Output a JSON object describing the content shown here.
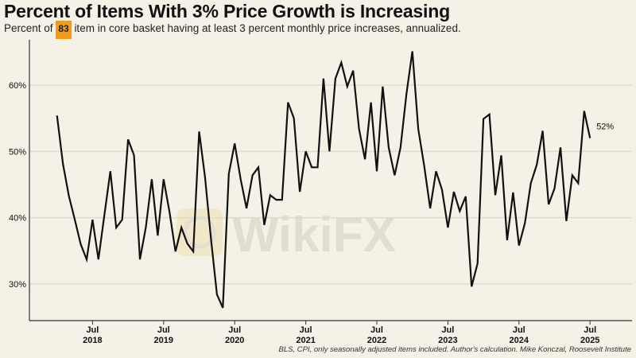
{
  "title": "Percent of Items With 3% Price Growth is Increasing",
  "subtitle": {
    "prefix": "Percent of",
    "highlight": "83",
    "suffix": "item in core basket having at least 3 percent monthly price increases, annualized."
  },
  "source": "BLS, CPI, only seasonally adjusted items included. Author's calculation. Mike Konczal, Roosevelt Institute",
  "watermark": "WikiFX",
  "colors": {
    "background": "#f4f1e6",
    "line": "#111111",
    "highlight": "#f39a1e",
    "grid": "#dcd8cc"
  },
  "chart_data": {
    "type": "line",
    "title": "Percent of Items With 3% Price Growth is Increasing",
    "x_start": "2018-01",
    "x_end": "2025-07",
    "frequency": "monthly",
    "ylim": [
      25,
      67
    ],
    "grid": true,
    "y_ticks": [
      {
        "value": 30,
        "label": "30%"
      },
      {
        "value": 40,
        "label": "40%"
      },
      {
        "value": 50,
        "label": "50%"
      },
      {
        "value": 60,
        "label": "60%"
      }
    ],
    "x_ticks": [
      {
        "month": "Jul",
        "year": "2018"
      },
      {
        "month": "Jul",
        "year": "2019"
      },
      {
        "month": "Jul",
        "year": "2020"
      },
      {
        "month": "Jul",
        "year": "2021"
      },
      {
        "month": "Jul",
        "year": "2022"
      },
      {
        "month": "Jul",
        "year": "2023"
      },
      {
        "month": "Jul",
        "year": "2024"
      },
      {
        "month": "Jul",
        "year": "2025"
      }
    ],
    "end_label": "52%",
    "values": [
      55.4,
      48.1,
      43.3,
      39.7,
      36.0,
      33.7,
      39.7,
      33.7,
      40.4,
      47.0,
      38.5,
      39.7,
      51.8,
      49.4,
      33.7,
      38.5,
      45.8,
      37.3,
      45.8,
      40.8,
      34.9,
      38.5,
      36.1,
      34.9,
      53.0,
      46.1,
      36.8,
      28.4,
      26.4,
      46.6,
      51.2,
      45.8,
      41.4,
      46.4,
      47.6,
      38.9,
      43.4,
      42.7,
      42.7,
      57.4,
      55.0,
      43.9,
      50.0,
      47.6,
      47.6,
      61.0,
      50.0,
      61.0,
      63.4,
      59.8,
      62.2,
      53.4,
      48.8,
      57.4,
      47.0,
      59.8,
      50.6,
      46.4,
      50.6,
      58.7,
      65.1,
      53.4,
      47.8,
      41.4,
      47.0,
      44.2,
      38.5,
      43.9,
      41.0,
      43.2,
      29.6,
      33.1,
      54.9,
      55.6,
      43.4,
      49.4,
      36.6,
      43.8,
      35.8,
      39.2,
      45.2,
      48.0,
      53.1,
      42.0,
      44.4,
      50.6,
      39.5,
      46.4,
      45.2,
      56.1,
      52.0
    ]
  }
}
